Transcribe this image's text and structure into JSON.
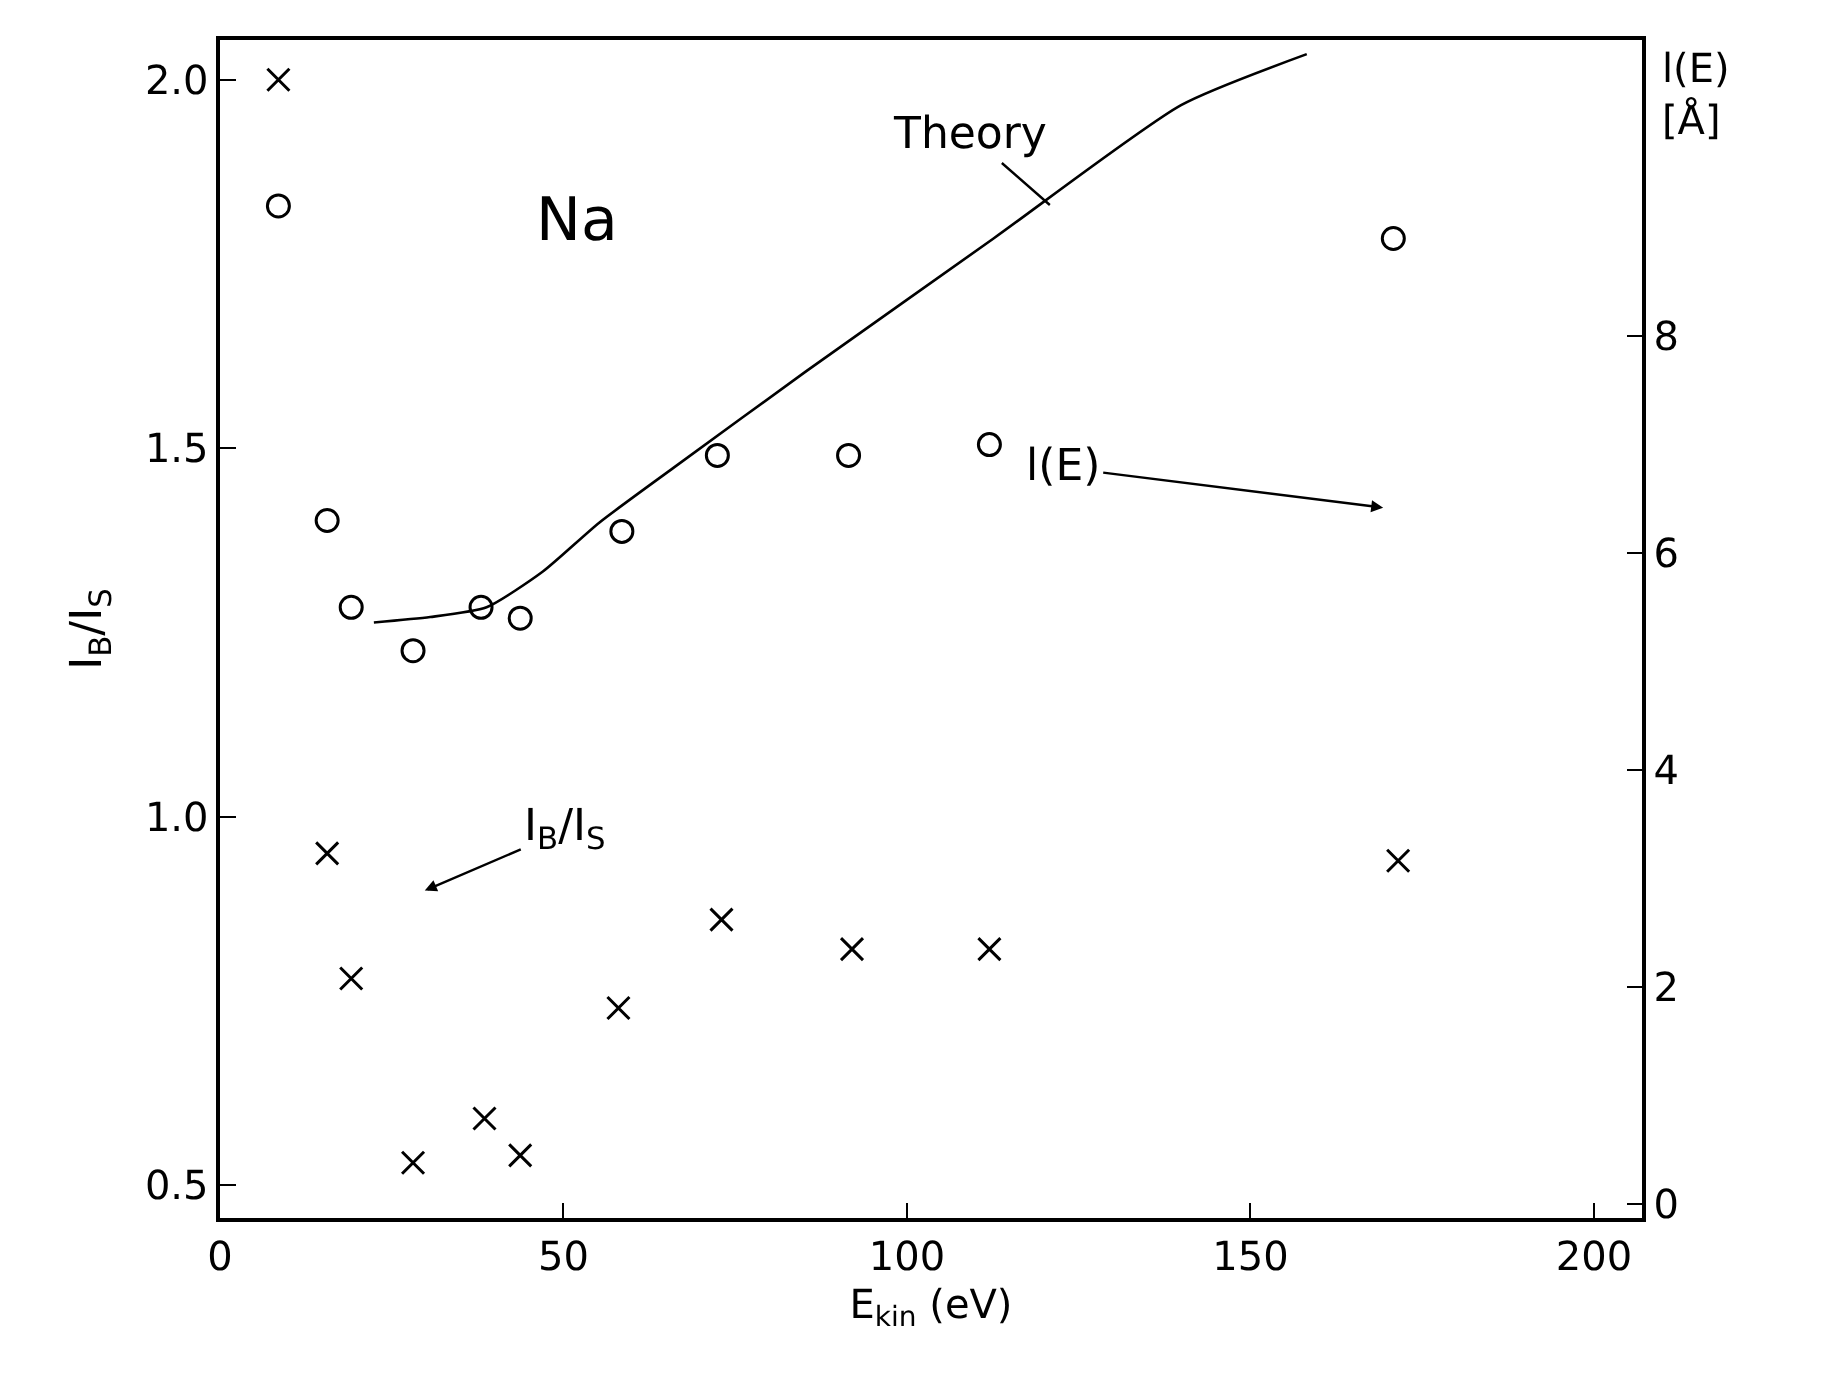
{
  "chart_data": {
    "type": "scatter",
    "xlabel": "E$_{kin}$ (eV)",
    "ylabel": "I$_{B}$/I$_{S}$",
    "y2label": "l(E) [Å]",
    "xlim": [
      0,
      207
    ],
    "xticks": [
      0,
      50,
      100,
      150,
      200
    ],
    "ylim": [
      0.455,
      2.054
    ],
    "yticks": [
      {
        "value": 0.5,
        "label": "0.5"
      },
      {
        "value": 1.0,
        "label": "1.0"
      },
      {
        "value": 1.5,
        "label": "1.5"
      },
      {
        "value": 2.0,
        "label": "2.0"
      }
    ],
    "y2lim": [
      -0.13,
      10.73
    ],
    "y2ticks": [
      0,
      2,
      4,
      6,
      8
    ],
    "series": [
      {
        "marker": "circle",
        "axis": "y2",
        "color": "#000000",
        "x": [
          8.5,
          15.6,
          19.1,
          28.1,
          38,
          43.7,
          58.5,
          72.4,
          91.5,
          112,
          170.8
        ],
        "values": [
          9.2,
          6.3,
          5.5,
          5.1,
          5.5,
          5.4,
          6.2,
          6.9,
          6.9,
          7.0,
          8.9
        ]
      },
      {
        "marker": "cross",
        "color": "#000000",
        "x": [
          8.5,
          15.6,
          19.1,
          28.1,
          38.5,
          43.7,
          58,
          73,
          92,
          112,
          171.5
        ],
        "values": [
          2.0,
          0.95,
          0.78,
          0.53,
          0.59,
          0.54,
          0.74,
          0.86,
          0.82,
          0.82,
          0.94
        ]
      },
      {
        "type": "line",
        "axis": "y2",
        "color": "#000000",
        "line_style": "solid",
        "marker": "none",
        "x": [
          22.4,
          30.6,
          38.8,
          47,
          55.2,
          66.1,
          85.2,
          112.6,
          139.9,
          158.2
        ],
        "values": [
          5.36,
          5.41,
          5.5,
          5.83,
          6.28,
          6.79,
          7.67,
          8.9,
          10.13,
          10.6
        ]
      }
    ],
    "annotations": [
      "Na",
      {
        "text": "Theory",
        "x": 120.8,
        "y": 1.83
      },
      "l(E)",
      "I$_{B}$/I$_{S}$"
    ]
  }
}
